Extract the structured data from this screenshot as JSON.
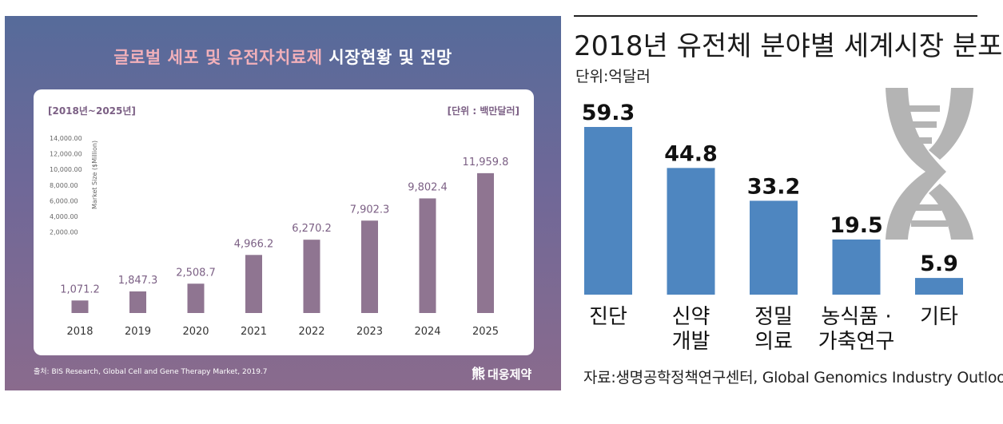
{
  "left": {
    "title_highlight": "글로벌 세포 및 유전자치료제",
    "title_rest": " 시장현황 및 전망",
    "range_label": "[2018년~2025년]",
    "unit_label": "[단위 : 백만달러]",
    "source": "출처: BIS Research, Global Cell and Gene Therapy Market, 2019.7",
    "logo_text": "대웅제약",
    "colors": {
      "bar": "#8f7591",
      "value_text": "#7b5f84"
    }
  },
  "right": {
    "title": "2018년 유전체 분야별 세계시장 분포",
    "unit_label": "단위:억달러",
    "source": "자료:생명공학정책연구센터, Global Genomics Industry Outlook",
    "colors": {
      "bar": "#4e86c0",
      "icon": "#b4b4b4"
    }
  },
  "chart_data": [
    {
      "type": "bar",
      "title": "글로벌 세포 및 유전자치료제 시장현황 및 전망",
      "categories": [
        "2018",
        "2019",
        "2020",
        "2021",
        "2022",
        "2023",
        "2024",
        "2025"
      ],
      "values": [
        1071.2,
        1847.3,
        2508.7,
        4966.2,
        6270.2,
        7902.3,
        9802.4,
        11959.8
      ],
      "value_labels": [
        "1,071.2",
        "1,847.3",
        "2,508.7",
        "4,966.2",
        "6,270.2",
        "7,902.3",
        "9,802.4",
        "11,959.8"
      ],
      "ylabel": "Market Size ($Million)",
      "ytick_labels": [
        "14,000.00",
        "12,000.00",
        "10,000.00",
        "8,000.00",
        "6,000.00",
        "4,000.00",
        "2,000.00"
      ],
      "ylim": [
        0,
        14000
      ]
    },
    {
      "type": "bar",
      "title": "2018년 유전체 분야별 세계시장 분포",
      "categories": [
        [
          "진단"
        ],
        [
          "신약",
          "개발"
        ],
        [
          "정밀",
          "의료"
        ],
        [
          "농식품 ·",
          "가축연구"
        ],
        [
          "기타"
        ]
      ],
      "values": [
        59.3,
        44.8,
        33.2,
        19.5,
        5.9
      ],
      "value_labels": [
        "59.3",
        "44.8",
        "33.2",
        "19.5",
        "5.9"
      ],
      "ylabel": "단위:억달러",
      "ylim": [
        0,
        59.3
      ]
    }
  ]
}
